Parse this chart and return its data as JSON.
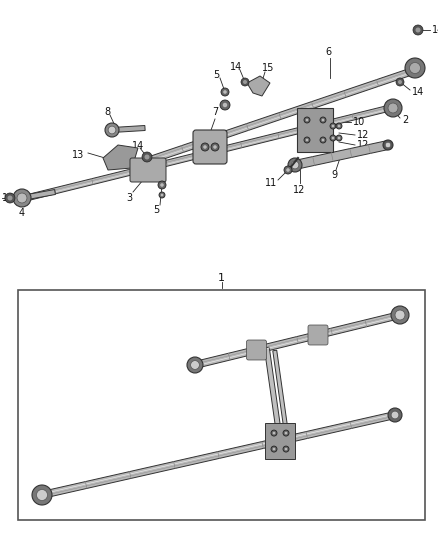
{
  "bg_color": "#ffffff",
  "lc": "#2a2a2a",
  "rod_fill": "#b0b0b0",
  "rod_edge": "#333333",
  "dark_fill": "#555555",
  "fig_width": 4.38,
  "fig_height": 5.33,
  "dpi": 100
}
